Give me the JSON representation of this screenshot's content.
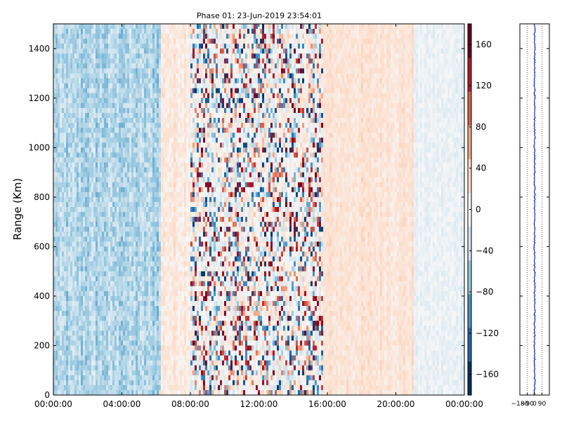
{
  "chart_data": [
    {
      "type": "heatmap",
      "title": "Phase 01: 23-Jun-2019 23:54:01",
      "xlabel": "",
      "ylabel": "Range (Km)",
      "xlim": [
        "00:00:00",
        "24:00:00"
      ],
      "ylim": [
        0,
        1500
      ],
      "x_ticks": [
        "00:00:00",
        "04:00:00",
        "08:00:00",
        "12:00:00",
        "16:00:00",
        "20:00:00",
        "00:00:00"
      ],
      "y_ticks": [
        0,
        200,
        400,
        600,
        800,
        1000,
        1200,
        1400
      ],
      "colorbar": {
        "colormap": "RdBu_r",
        "vmin": -180,
        "vmax": 180,
        "ticks": [
          -160,
          -120,
          -80,
          -40,
          0,
          40,
          80,
          120,
          160
        ],
        "colors": [
          "#053061",
          "#2166ac",
          "#4393c3",
          "#92c5de",
          "#d1e5f0",
          "#f7f7f7",
          "#fddbc7",
          "#f4a582",
          "#d6604d",
          "#b2182b",
          "#67001f"
        ]
      },
      "phase_profile": {
        "description_bands_hours": [
          {
            "from": 0,
            "to": 6.3,
            "mean_phase": -55,
            "noise": 25
          },
          {
            "from": 6.3,
            "to": 8.0,
            "mean_phase": 20,
            "noise": 15
          },
          {
            "from": 8.0,
            "to": 15.8,
            "mean_phase": 0,
            "noise": 180
          },
          {
            "from": 15.8,
            "to": 21.0,
            "mean_phase": 25,
            "noise": 12
          },
          {
            "from": 21.0,
            "to": 24.0,
            "mean_phase": -12,
            "noise": 12
          }
        ]
      }
    },
    {
      "type": "line",
      "x_ticks": [
        -180,
        -90,
        0,
        90
      ],
      "xlim": [
        -180,
        180
      ],
      "ylim": [
        0,
        1500
      ],
      "series_color": "#0000cc",
      "mean_value": 0,
      "spread": 8
    }
  ]
}
